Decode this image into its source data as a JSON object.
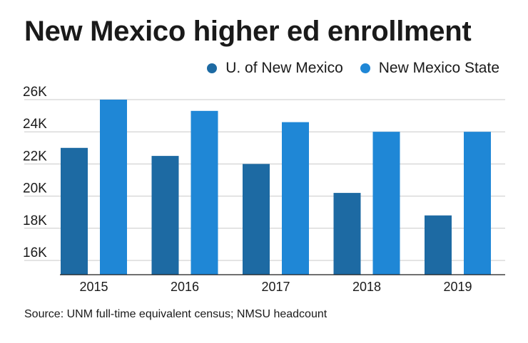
{
  "chart_data": {
    "type": "bar",
    "title": "New Mexico higher ed enrollment",
    "categories": [
      "2015",
      "2016",
      "2017",
      "2018",
      "2019"
    ],
    "series": [
      {
        "name": "U. of New Mexico",
        "color": "#1d6aa3",
        "values": [
          23.0,
          22.5,
          22.0,
          20.2,
          18.8
        ]
      },
      {
        "name": "New Mexico State",
        "color": "#1f87d6",
        "values": [
          26.0,
          25.3,
          24.6,
          24.0,
          24.0
        ]
      }
    ],
    "y_ticks": [
      16,
      18,
      20,
      22,
      24,
      26
    ],
    "y_tick_labels": [
      "16K",
      "18K",
      "20K",
      "22K",
      "24K",
      "26K"
    ],
    "ylim": [
      15,
      26
    ],
    "ylabel": "",
    "xlabel": "",
    "grid": true,
    "legend_position": "top-right",
    "source": "Source: UNM full-time equivalent census; NMSU headcount"
  }
}
